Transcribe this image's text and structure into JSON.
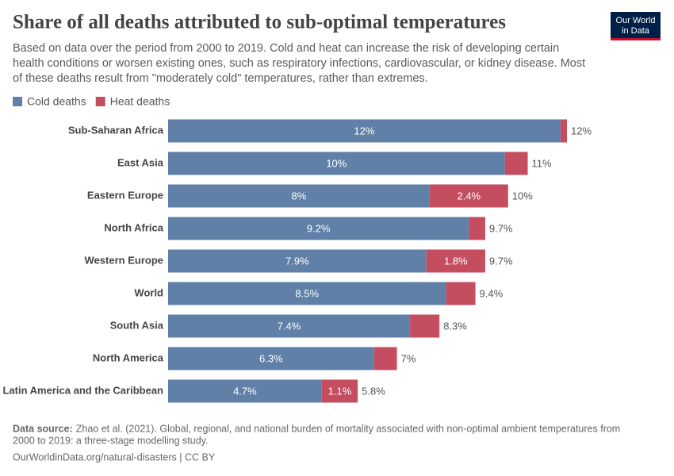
{
  "chart_data": {
    "type": "bar",
    "orientation": "horizontal",
    "stacked": true,
    "title": "Share of all deaths attributed to sub-optimal temperatures",
    "subtitle": [
      "Based on data over the period from 2000 to 2019. Cold and heat can increase the risk of developing certain",
      "health conditions or worsen existing ones, such as respiratory infections, cardiovascular, or kidney disease. Most",
      "of these deaths result from \"moderately cold\" temperatures, rather than extremes."
    ],
    "categories": [
      "Sub-Saharan Africa",
      "East Asia",
      "Eastern Europe",
      "North Africa",
      "Western Europe",
      "World",
      "South Asia",
      "North America",
      "Latin America and the Caribbean"
    ],
    "series": [
      {
        "name": "Cold deaths",
        "color": "#6080a8",
        "values": [
          12,
          10.3,
          8,
          9.2,
          7.9,
          8.5,
          7.4,
          6.3,
          4.7
        ],
        "value_labels": [
          "12%",
          "10%",
          "8%",
          "9.2%",
          "7.9%",
          "8.5%",
          "7.4%",
          "6.3%",
          "4.7%"
        ]
      },
      {
        "name": "Heat deaths",
        "color": "#c44e60",
        "values": [
          0.2,
          0.7,
          2.4,
          0.5,
          1.8,
          0.9,
          0.9,
          0.7,
          1.1
        ],
        "value_labels": [
          null,
          null,
          "2.4%",
          null,
          "1.8%",
          null,
          null,
          null,
          "1.1%"
        ]
      }
    ],
    "totals": [
      12,
      11,
      10,
      9.7,
      9.7,
      9.4,
      8.3,
      7,
      5.8
    ],
    "total_labels": [
      "12%",
      "11%",
      "10%",
      "9.7%",
      "9.7%",
      "9.4%",
      "8.3%",
      "7%",
      "5.8%"
    ],
    "source_label": "Data source:",
    "source": [
      "Zhao et al. (2021). Global, regional, and national burden of mortality associated with non-optimal ambient temperatures from",
      "2000 to 2019: a three-stage modelling study."
    ],
    "url": "OurWorldinData.org/natural-disasters | CC BY",
    "logo": [
      "Our World",
      "in Data"
    ]
  }
}
